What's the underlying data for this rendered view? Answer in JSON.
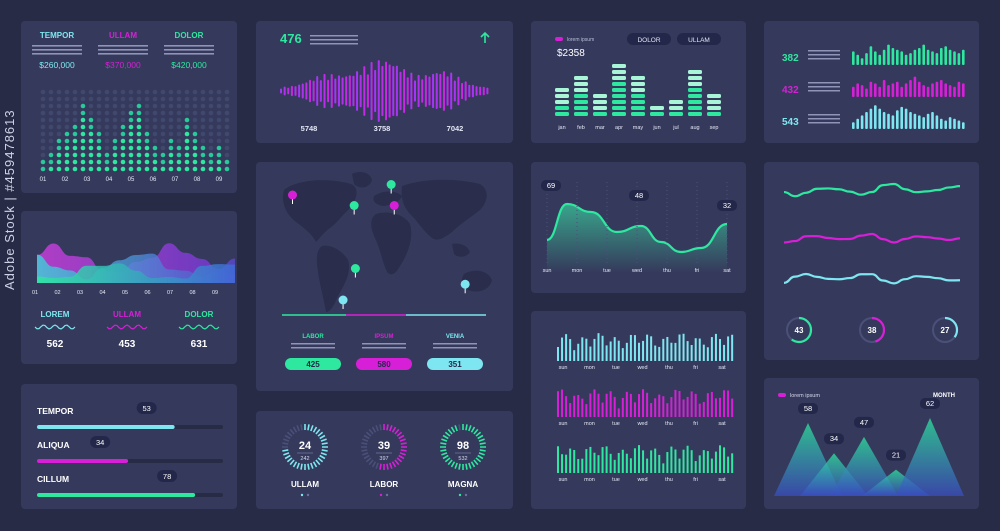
{
  "colors": {
    "green": "#2ee8a0",
    "magenta": "#d81fd8",
    "cyan": "#7ee6f0",
    "panel": "#353a5c",
    "bg": "#272b45",
    "dot": "#434a70"
  },
  "watermark": "Adobe Stock | #459478613",
  "chart_data": [
    {
      "type": "dot-matrix",
      "id": "p1",
      "headers": [
        {
          "label": "TEMPOR",
          "value": "$260,000",
          "color": "cyan"
        },
        {
          "label": "ULLAM",
          "value": "$370,000",
          "color": "magenta"
        },
        {
          "label": "DOLOR",
          "value": "$420,000",
          "color": "green"
        }
      ],
      "categories": [
        "01",
        "02",
        "03",
        "04",
        "05",
        "06",
        "07",
        "08",
        "09"
      ],
      "levels": [
        2,
        3,
        5,
        6,
        7,
        10,
        8,
        6,
        3,
        5,
        7,
        9,
        10,
        6,
        4,
        3,
        5,
        4,
        8,
        6,
        4,
        3,
        4,
        2
      ]
    },
    {
      "type": "waveform",
      "id": "p2",
      "value": "476",
      "labels": [
        "5748",
        "3758",
        "7042"
      ]
    },
    {
      "type": "bar",
      "id": "p3",
      "legend": "lorem ipsum",
      "tabs": [
        "DOLOR",
        "ULLAM"
      ],
      "value": "$2358",
      "categories": [
        "jan",
        "feb",
        "mar",
        "apr",
        "may",
        "jun",
        "jul",
        "aug",
        "sep"
      ],
      "values": [
        5,
        7,
        4,
        9,
        7,
        2,
        3,
        8,
        4
      ]
    },
    {
      "type": "bar",
      "id": "p4",
      "rows": [
        {
          "value": "382",
          "color": "green",
          "values": [
            8,
            6,
            4,
            7,
            11,
            8,
            6,
            9,
            12,
            10,
            9,
            8,
            6,
            7,
            9,
            10,
            12,
            9,
            8,
            7,
            10,
            11,
            9,
            8,
            7,
            9
          ]
        },
        {
          "value": "432",
          "color": "magenta",
          "values": [
            6,
            8,
            7,
            5,
            9,
            8,
            6,
            10,
            7,
            8,
            9,
            6,
            8,
            10,
            12,
            9,
            7,
            6,
            8,
            9,
            10,
            8,
            7,
            6,
            9,
            8
          ]
        },
        {
          "value": "543",
          "color": "cyan",
          "values": [
            4,
            6,
            8,
            10,
            12,
            14,
            12,
            10,
            9,
            8,
            11,
            13,
            12,
            10,
            9,
            8,
            7,
            9,
            10,
            8,
            6,
            5,
            7,
            6,
            5,
            4
          ]
        }
      ]
    },
    {
      "type": "area",
      "id": "p5",
      "categories": [
        "01",
        "02",
        "03",
        "04",
        "05",
        "06",
        "07",
        "08",
        "09"
      ],
      "kpis": [
        {
          "label": "LOREM",
          "value": "562",
          "color": "cyan"
        },
        {
          "label": "ULLAM",
          "value": "453",
          "color": "magenta"
        },
        {
          "label": "DOLOR",
          "value": "631",
          "color": "green"
        }
      ]
    },
    {
      "type": "map",
      "id": "p6",
      "pins": [
        {
          "x": -150,
          "y": 60,
          "color": "magenta"
        },
        {
          "x": -50,
          "y": 50,
          "color": "green"
        },
        {
          "x": 10,
          "y": 70,
          "color": "green"
        },
        {
          "x": 15,
          "y": 50,
          "color": "magenta"
        },
        {
          "x": -48,
          "y": -10,
          "color": "green"
        },
        {
          "x": -68,
          "y": -40,
          "color": "cyan"
        },
        {
          "x": 130,
          "y": -25,
          "color": "cyan"
        }
      ],
      "series": [
        {
          "name": "LABOR",
          "value": "425",
          "color": "green"
        },
        {
          "name": "IPSUM",
          "value": "580",
          "color": "magenta"
        },
        {
          "name": "VENIA",
          "value": "351",
          "color": "cyan"
        }
      ]
    },
    {
      "type": "line",
      "id": "p7",
      "categories": [
        "sun",
        "mon",
        "tue",
        "wed",
        "thu",
        "fri",
        "sat"
      ],
      "labels": [
        "69",
        "48",
        "32"
      ]
    },
    {
      "type": "line",
      "id": "p8",
      "circles": [
        {
          "value": "43",
          "color": "green",
          "fraction": 0.6
        },
        {
          "value": "38",
          "color": "magenta",
          "fraction": 0.45
        },
        {
          "value": "27",
          "color": "cyan",
          "fraction": 0.35
        }
      ]
    },
    {
      "type": "bar",
      "id": "p9",
      "categories": [
        "sun",
        "mon",
        "tue",
        "wed",
        "thu",
        "fri",
        "sat"
      ],
      "series_colors": [
        "cyan",
        "magenta",
        "green"
      ]
    },
    {
      "type": "progress",
      "id": "p10",
      "items": [
        {
          "label": "TEMPOR",
          "value": "53",
          "fraction": 0.74,
          "color": "cyan"
        },
        {
          "label": "ALIQUA",
          "value": "34",
          "fraction": 0.49,
          "color": "magenta"
        },
        {
          "label": "CILLUM",
          "value": "78",
          "fraction": 0.85,
          "color": "green"
        }
      ]
    },
    {
      "type": "gauge",
      "id": "p11",
      "items": [
        {
          "label": "ULLAM",
          "value": "24",
          "sub": "242",
          "color": "cyan",
          "fraction": 0.75
        },
        {
          "label": "LABOR",
          "value": "39",
          "sub": "397",
          "color": "magenta",
          "fraction": 0.55
        },
        {
          "label": "MAGNA",
          "value": "98",
          "sub": "532",
          "color": "green",
          "fraction": 0.95
        }
      ]
    },
    {
      "type": "area",
      "id": "p12",
      "legend": "lorem ipsum",
      "period": "MONTH",
      "labels": [
        "58",
        "34",
        "47",
        "21",
        "62"
      ],
      "values": [
        58,
        34,
        47,
        21,
        62
      ]
    }
  ]
}
